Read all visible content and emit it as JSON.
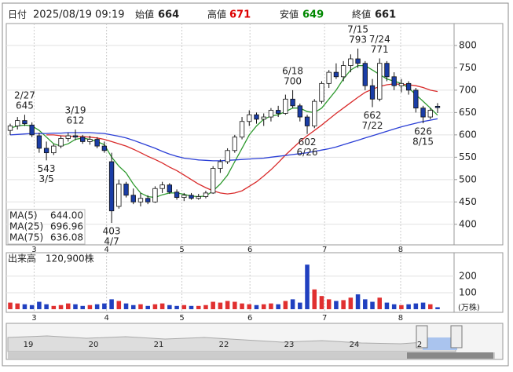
{
  "header": {
    "date_label": "日付",
    "date": "2025/08/19 09:19",
    "open_label": "始値",
    "open": 664,
    "high_label": "高値",
    "high": 671,
    "low_label": "安値",
    "low": 649,
    "close_label": "終値",
    "close": 661
  },
  "chart_data": {
    "type": "candlestick",
    "candles": [
      [
        610,
        625,
        600,
        620
      ],
      [
        620,
        640,
        612,
        632
      ],
      [
        632,
        645,
        620,
        625
      ],
      [
        622,
        628,
        595,
        600
      ],
      [
        598,
        605,
        560,
        570
      ],
      [
        570,
        585,
        543,
        560
      ],
      [
        560,
        580,
        555,
        575
      ],
      [
        575,
        598,
        570,
        592
      ],
      [
        592,
        605,
        585,
        598
      ],
      [
        598,
        612,
        588,
        595
      ],
      [
        595,
        600,
        580,
        585
      ],
      [
        585,
        598,
        578,
        590
      ],
      [
        590,
        595,
        570,
        575
      ],
      [
        575,
        585,
        560,
        565
      ],
      [
        540,
        560,
        403,
        430
      ],
      [
        440,
        500,
        435,
        490
      ],
      [
        490,
        495,
        460,
        465
      ],
      [
        465,
        480,
        445,
        450
      ],
      [
        450,
        470,
        440,
        458
      ],
      [
        458,
        465,
        445,
        450
      ],
      [
        450,
        485,
        448,
        480
      ],
      [
        480,
        495,
        470,
        488
      ],
      [
        488,
        492,
        468,
        472
      ],
      [
        472,
        478,
        455,
        460
      ],
      [
        460,
        470,
        452,
        465
      ],
      [
        465,
        470,
        455,
        458
      ],
      [
        458,
        468,
        455,
        462
      ],
      [
        462,
        475,
        458,
        470
      ],
      [
        470,
        530,
        468,
        525
      ],
      [
        525,
        545,
        515,
        540
      ],
      [
        540,
        570,
        535,
        565
      ],
      [
        565,
        600,
        560,
        595
      ],
      [
        595,
        640,
        590,
        630
      ],
      [
        630,
        655,
        620,
        645
      ],
      [
        645,
        650,
        625,
        635
      ],
      [
        635,
        648,
        620,
        640
      ],
      [
        640,
        660,
        630,
        655
      ],
      [
        655,
        665,
        640,
        648
      ],
      [
        648,
        690,
        645,
        680
      ],
      [
        680,
        700,
        660,
        665
      ],
      [
        665,
        670,
        630,
        640
      ],
      [
        640,
        645,
        602,
        620
      ],
      [
        620,
        680,
        615,
        675
      ],
      [
        675,
        720,
        670,
        715
      ],
      [
        715,
        745,
        705,
        740
      ],
      [
        740,
        760,
        725,
        730
      ],
      [
        730,
        765,
        720,
        755
      ],
      [
        755,
        780,
        740,
        770
      ],
      [
        770,
        793,
        750,
        760
      ],
      [
        760,
        765,
        700,
        710
      ],
      [
        710,
        725,
        662,
        680
      ],
      [
        680,
        771,
        675,
        760
      ],
      [
        760,
        765,
        720,
        730
      ],
      [
        730,
        740,
        700,
        710
      ],
      [
        710,
        725,
        695,
        715
      ],
      [
        715,
        720,
        690,
        700
      ],
      [
        700,
        705,
        650,
        660
      ],
      [
        660,
        665,
        626,
        640
      ],
      [
        640,
        660,
        635,
        655
      ],
      [
        664,
        671,
        649,
        661
      ]
    ],
    "up_color": "#ffffff",
    "down_color": "#1a3da6",
    "ylim": [
      354,
      849
    ],
    "yticks": [
      400,
      450,
      500,
      550,
      600,
      650,
      700,
      750,
      800
    ],
    "grid": true,
    "xticks": [
      {
        "value": 3.3,
        "label": "3"
      },
      {
        "value": 13.3,
        "label": "4"
      },
      {
        "value": 23.7,
        "label": "5"
      },
      {
        "value": 33.1,
        "label": "6"
      },
      {
        "value": 43.4,
        "label": "7"
      },
      {
        "value": 53.9,
        "label": "8"
      }
    ],
    "ma": [
      {
        "name": "MA(5)",
        "color": "#2e9a2e",
        "legend_value": {
          "value": 644,
          "label": "644.00"
        },
        "values": [
          615,
          620,
          622,
          620,
          610,
          595,
          580,
          575,
          580,
          590,
          593,
          590,
          585,
          578,
          550,
          530,
          515,
          490,
          470,
          462,
          460,
          466,
          470,
          470,
          467,
          463,
          462,
          463,
          475,
          490,
          510,
          540,
          570,
          600,
          620,
          635,
          642,
          645,
          652,
          660,
          660,
          652,
          650,
          660,
          680,
          700,
          725,
          745,
          755,
          755,
          745,
          735,
          725,
          720,
          715,
          705,
          690,
          675,
          660,
          644
        ]
      },
      {
        "name": "MA(25)",
        "color": "#d92b2b",
        "legend_value": {
          "value": 696.96,
          "label": "696.96"
        },
        "values": [
          null,
          null,
          null,
          null,
          null,
          600,
          600,
          598,
          597,
          597,
          596,
          595,
          593,
          590,
          585,
          580,
          575,
          568,
          560,
          552,
          545,
          537,
          528,
          520,
          510,
          500,
          490,
          482,
          475,
          470,
          468,
          470,
          475,
          485,
          495,
          508,
          522,
          538,
          555,
          570,
          585,
          598,
          610,
          622,
          635,
          648,
          660,
          672,
          684,
          695,
          702,
          708,
          712,
          714,
          713,
          712,
          710,
          706,
          700,
          696.96
        ]
      },
      {
        "name": "MA(75)",
        "color": "#2b3fd6",
        "legend_value": {
          "value": 636.08,
          "label": "636.08"
        },
        "values": [
          600,
          601,
          602,
          603,
          603,
          603,
          604,
          604,
          605,
          605,
          605,
          605,
          604,
          603,
          600,
          597,
          593,
          588,
          582,
          576,
          570,
          563,
          557,
          552,
          548,
          546,
          544,
          543,
          542,
          542,
          543,
          544,
          545,
          546,
          547,
          548,
          550,
          552,
          554,
          556,
          558,
          560,
          563,
          566,
          569,
          573,
          578,
          583,
          588,
          593,
          598,
          603,
          608,
          613,
          618,
          622,
          626,
          630,
          633,
          636.08
        ]
      }
    ],
    "annotations": [
      {
        "date": "2/27",
        "value": 645,
        "pos": "above"
      },
      {
        "date": "3/19",
        "value": 612,
        "pos": "above"
      },
      {
        "date": "3/5",
        "value": 543,
        "pos": "below"
      },
      {
        "date": "4/7",
        "value": 403,
        "pos": "below"
      },
      {
        "date": "6/18",
        "value": 700,
        "pos": "above"
      },
      {
        "date": "6/26",
        "value": 602,
        "pos": "below"
      },
      {
        "date": "7/15",
        "value": 793,
        "pos": "above"
      },
      {
        "date": "7/24",
        "value": 771,
        "pos": "above"
      },
      {
        "date": "7/22",
        "value": 662,
        "pos": "below"
      },
      {
        "date": "8/15",
        "value": 626,
        "pos": "below"
      }
    ],
    "volume": {
      "label": "出来高",
      "current": {
        "value": 12.09,
        "label": "120,900株"
      },
      "unit": "(万株)",
      "up_color": "#e03030",
      "down_color": "#2040c0",
      "values": [
        40,
        35,
        30,
        25,
        45,
        30,
        20,
        25,
        35,
        30,
        20,
        25,
        30,
        35,
        60,
        50,
        35,
        25,
        30,
        20,
        30,
        35,
        25,
        20,
        25,
        20,
        20,
        25,
        45,
        40,
        50,
        45,
        35,
        30,
        25,
        30,
        35,
        30,
        50,
        60,
        40,
        270,
        120,
        80,
        60,
        50,
        55,
        70,
        90,
        60,
        45,
        70,
        40,
        30,
        25,
        30,
        35,
        40,
        30,
        12.09
      ],
      "ylim": [
        0,
        290
      ],
      "yticks": [
        100,
        200
      ]
    }
  },
  "navigator_labels": [
    "19",
    "20",
    "21",
    "22",
    "23",
    "24",
    "2"
  ]
}
